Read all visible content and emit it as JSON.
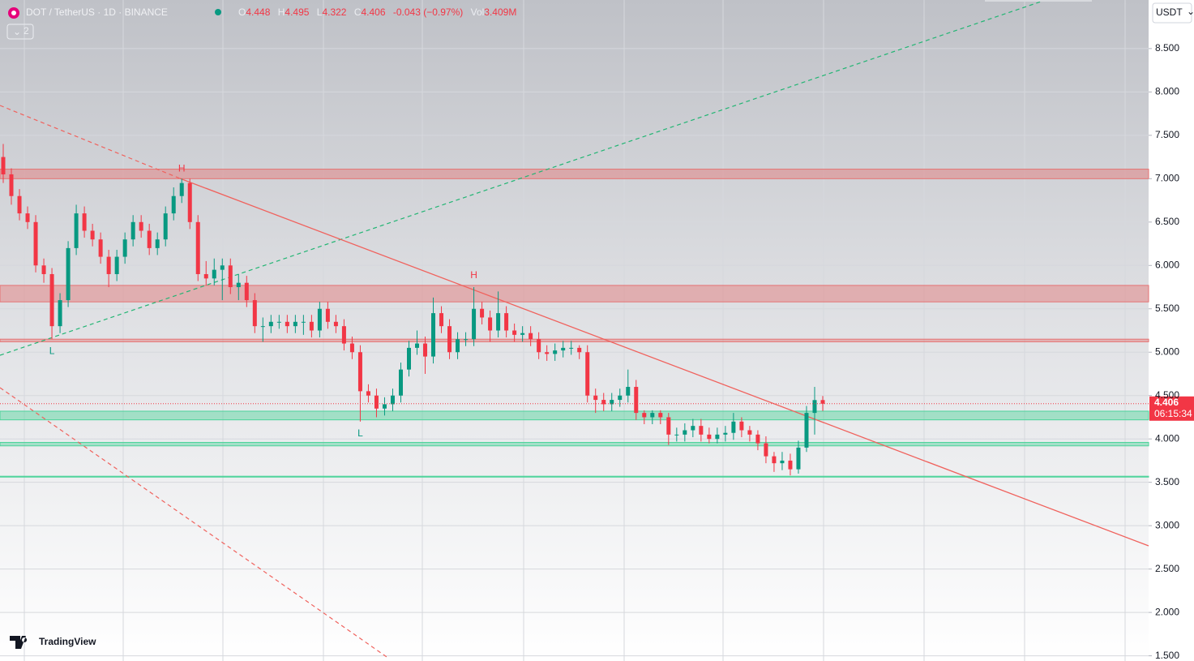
{
  "chart_data": {
    "type": "candlestick",
    "title": "DOT / TetherUS · 1D · BINANCE",
    "legend": {
      "open_label": "O",
      "open": "4.448",
      "high_label": "H",
      "high": "4.495",
      "low_label": "L",
      "low": "4.322",
      "close_label": "C",
      "close": "4.406",
      "change": "-0.043 (−0.97%)",
      "volume_label": "Vol",
      "volume": "3.409M"
    },
    "indicator_count": "2",
    "currency": "USDT",
    "countdown": "06:15:34",
    "brand": "TradingView",
    "annotations": [
      "H",
      "H",
      "L",
      "L"
    ],
    "up_color": "#089981",
    "down_color": "#f23645",
    "open": [
      7.25,
      7.05,
      6.8,
      6.6,
      6.5,
      6.0,
      5.9,
      5.3,
      5.6,
      6.2,
      6.6,
      6.4,
      6.3,
      6.1,
      5.9,
      6.1,
      6.3,
      6.5,
      6.4,
      6.2,
      6.3,
      6.6,
      6.8,
      6.95,
      6.5,
      5.9,
      5.85,
      5.95,
      6.0,
      5.75,
      5.8,
      5.6,
      5.3,
      5.3,
      5.35,
      5.35,
      5.3,
      5.35,
      5.35,
      5.25,
      5.5,
      5.35,
      5.3,
      5.1,
      5.0,
      4.55,
      4.5,
      4.35,
      4.4,
      4.5,
      4.8,
      5.05,
      5.1,
      4.95,
      5.45,
      5.3,
      5.0,
      5.15,
      5.15,
      5.5,
      5.4,
      5.25,
      5.45,
      5.25,
      5.2,
      5.22,
      5.15,
      5.0,
      4.98,
      5.02,
      5.05,
      5.05,
      5.0,
      4.5,
      4.45,
      4.4,
      4.45,
      4.5,
      4.6,
      4.3,
      4.25,
      4.3,
      4.25,
      4.05,
      4.05,
      4.1,
      4.15,
      4.05,
      4.0,
      4.05,
      4.07,
      4.2,
      4.1,
      4.05,
      3.95,
      3.8,
      3.72,
      3.75,
      3.65,
      3.9,
      4.3,
      4.448
    ],
    "high": [
      7.4,
      7.12,
      6.88,
      6.68,
      6.58,
      6.08,
      5.97,
      5.68,
      6.28,
      6.7,
      6.68,
      6.48,
      6.38,
      6.18,
      6.18,
      6.38,
      6.58,
      6.58,
      6.48,
      6.38,
      6.68,
      6.9,
      7.0,
      7.0,
      6.58,
      6.05,
      6.08,
      6.08,
      6.08,
      5.9,
      5.88,
      5.68,
      5.4,
      5.43,
      5.43,
      5.43,
      5.43,
      5.43,
      5.43,
      5.58,
      5.58,
      5.43,
      5.38,
      5.18,
      5.08,
      4.63,
      4.58,
      4.48,
      4.58,
      4.88,
      5.13,
      5.25,
      5.18,
      5.63,
      5.53,
      5.38,
      5.23,
      5.23,
      5.75,
      5.58,
      5.48,
      5.7,
      5.53,
      5.33,
      5.3,
      5.3,
      5.23,
      5.08,
      5.1,
      5.13,
      5.13,
      5.08,
      5.08,
      4.58,
      4.53,
      4.53,
      4.58,
      4.8,
      4.68,
      4.33,
      4.33,
      4.33,
      4.3,
      4.13,
      4.18,
      4.23,
      4.23,
      4.13,
      4.13,
      4.15,
      4.3,
      4.25,
      4.15,
      4.1,
      4.03,
      3.85,
      3.85,
      3.83,
      3.98,
      4.38,
      4.6,
      4.495
    ],
    "low": [
      6.95,
      6.7,
      6.52,
      6.42,
      5.92,
      5.8,
      5.15,
      5.22,
      5.52,
      6.12,
      6.32,
      6.22,
      6.02,
      5.75,
      5.82,
      6.02,
      6.22,
      6.32,
      6.12,
      6.12,
      6.22,
      6.52,
      6.72,
      6.42,
      5.82,
      5.77,
      5.77,
      5.6,
      5.67,
      5.6,
      5.52,
      5.22,
      5.12,
      5.22,
      5.27,
      5.22,
      5.22,
      5.2,
      5.17,
      5.17,
      5.27,
      5.22,
      5.02,
      4.92,
      4.2,
      4.42,
      4.25,
      4.27,
      4.32,
      4.42,
      4.72,
      4.97,
      4.75,
      4.87,
      5.22,
      4.92,
      4.92,
      5.07,
      5.07,
      5.32,
      5.12,
      5.17,
      5.17,
      5.12,
      5.12,
      5.07,
      4.92,
      4.9,
      4.9,
      4.94,
      4.97,
      4.92,
      4.42,
      4.3,
      4.32,
      4.32,
      4.37,
      4.42,
      4.22,
      4.17,
      4.17,
      4.17,
      3.93,
      3.97,
      3.97,
      4.02,
      3.97,
      3.95,
      3.95,
      3.97,
      3.99,
      4.02,
      3.97,
      3.87,
      3.72,
      3.62,
      3.64,
      3.58,
      3.6,
      3.85,
      4.05,
      4.322
    ],
    "close": [
      7.05,
      6.8,
      6.6,
      6.5,
      6.0,
      5.9,
      5.3,
      5.6,
      6.2,
      6.6,
      6.4,
      6.3,
      6.1,
      5.9,
      6.1,
      6.3,
      6.5,
      6.4,
      6.2,
      6.3,
      6.6,
      6.8,
      6.95,
      6.5,
      5.9,
      5.85,
      5.95,
      6.0,
      5.75,
      5.8,
      5.6,
      5.3,
      5.3,
      5.35,
      5.35,
      5.3,
      5.35,
      5.35,
      5.25,
      5.5,
      5.35,
      5.3,
      5.1,
      5.0,
      4.55,
      4.5,
      4.35,
      4.4,
      4.5,
      4.8,
      5.05,
      5.1,
      4.95,
      5.45,
      5.3,
      5.0,
      5.15,
      5.15,
      5.5,
      5.4,
      5.25,
      5.45,
      5.25,
      5.2,
      5.22,
      5.15,
      5.0,
      4.98,
      5.02,
      5.05,
      5.05,
      5.0,
      4.5,
      4.45,
      4.4,
      4.45,
      4.5,
      4.6,
      4.3,
      4.25,
      4.3,
      4.25,
      4.05,
      4.05,
      4.1,
      4.15,
      4.05,
      4.0,
      4.05,
      4.07,
      4.2,
      4.1,
      4.05,
      3.95,
      3.8,
      3.72,
      3.75,
      3.65,
      3.9,
      4.3,
      4.448,
      4.406
    ],
    "zones": [
      {
        "ymin": 7.0,
        "ymax": 7.11,
        "color": "#e57373"
      },
      {
        "ymin": 5.58,
        "ymax": 5.77,
        "color": "#e57373"
      },
      {
        "ymin": 5.12,
        "ymax": 5.15,
        "color": "#e57373"
      },
      {
        "ymin": 4.22,
        "ymax": 4.32,
        "color": "#4cd39a"
      },
      {
        "ymin": 3.92,
        "ymax": 3.96,
        "color": "#4cd39a"
      },
      {
        "ymin": 3.56,
        "ymax": 3.57,
        "color": "#4cd39a"
      }
    ],
    "ylim": [
      1.44,
      9.06
    ],
    "yticks": [
      {
        "value": 1.5,
        "label": "1.500"
      },
      {
        "value": 2,
        "label": "2.000"
      },
      {
        "value": 2.5,
        "label": "2.500"
      },
      {
        "value": 3,
        "label": "3.000"
      },
      {
        "value": 3.5,
        "label": "3.500"
      },
      {
        "value": 4,
        "label": "4.000"
      },
      {
        "value": 4.5,
        "label": "4.500"
      },
      {
        "value": 5,
        "label": "5.000"
      },
      {
        "value": 5.5,
        "label": "5.500"
      },
      {
        "value": 6,
        "label": "6.000"
      },
      {
        "value": 6.5,
        "label": "6.500"
      },
      {
        "value": 7,
        "label": "7.000"
      },
      {
        "value": 7.5,
        "label": "7.500"
      },
      {
        "value": 8,
        "label": "8.000"
      },
      {
        "value": 8.5,
        "label": "8.500"
      }
    ],
    "grid": true
  }
}
